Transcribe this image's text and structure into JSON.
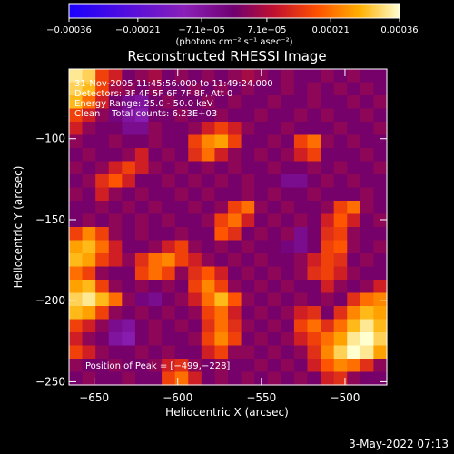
{
  "chart_data": {
    "type": "heatmap",
    "title": "Reconstructed RHESSI Image",
    "xlabel": "Heliocentric X (arcsec)",
    "ylabel": "Heliocentric Y (arcsec)",
    "xlim": [
      -665,
      -475
    ],
    "ylim": [
      -252,
      -57
    ],
    "x_ticks": [
      -650,
      -600,
      -550,
      -500
    ],
    "x_tick_labels": [
      "−650",
      "−600",
      "−550",
      "−500"
    ],
    "y_ticks": [
      -100,
      -150,
      -200,
      -250
    ],
    "y_tick_labels": [
      "−100",
      "−150",
      "−200",
      "−250"
    ],
    "colorbar": {
      "vmin": -0.00036,
      "vmax": 0.00036,
      "ticks": [
        -0.00036,
        -0.00021,
        -7.1e-05,
        7.1e-05,
        0.00021,
        0.00036
      ],
      "tick_labels": [
        "−0.00036",
        "−0.00021",
        "−7.1e−05",
        "7.1e−05",
        "0.00021",
        "0.00036"
      ],
      "unit_label": "(photons cm⁻² s⁻¹ asec⁻²)"
    },
    "annotations": {
      "time_range": "31-Nov-2005 11:45:56.000 to 11:49:24.000",
      "detectors": "Detectors: 3F 4F 5F 6F 7F 8F, Att 0",
      "energy": "Energy Range: 25.0 - 50.0 keV",
      "clean": "Clean    Total counts: 6.23E+03",
      "peak": "Position of Peak = [−499,−228]"
    },
    "peak_position": [
      -499,
      -228
    ],
    "grid_rows": 24,
    "grid_cols": 24,
    "grid_values": [
      [
        0.95,
        0.9,
        0.6,
        0.5,
        0.3,
        0.35,
        0.4,
        0.3,
        0.35,
        0.3,
        0.35,
        0.3,
        0.35,
        0.4,
        0.35,
        0.3,
        0.35,
        0.3,
        0.3,
        0.35,
        0.3,
        0.35,
        0.3,
        0.3
      ],
      [
        0.9,
        0.85,
        0.6,
        0.4,
        0.35,
        0.3,
        0.35,
        0.3,
        0.3,
        0.35,
        0.3,
        0.35,
        0.3,
        0.35,
        0.3,
        0.3,
        0.35,
        0.3,
        0.35,
        0.3,
        0.35,
        0.3,
        0.35,
        0.3
      ],
      [
        0.85,
        0.7,
        0.5,
        0.3,
        0.2,
        0.15,
        0.3,
        0.35,
        0.3,
        0.3,
        0.35,
        0.3,
        0.35,
        0.3,
        0.3,
        0.35,
        0.3,
        0.3,
        0.35,
        0.3,
        0.3,
        0.35,
        0.3,
        0.35
      ],
      [
        0.6,
        0.5,
        0.35,
        0.25,
        0.15,
        0.1,
        0.3,
        0.3,
        0.35,
        0.3,
        0.3,
        0.35,
        0.3,
        0.3,
        0.35,
        0.3,
        0.3,
        0.35,
        0.3,
        0.35,
        0.3,
        0.3,
        0.35,
        0.3
      ],
      [
        0.5,
        0.35,
        0.3,
        0.3,
        0.2,
        0.2,
        0.35,
        0.3,
        0.3,
        0.35,
        0.5,
        0.6,
        0.5,
        0.35,
        0.3,
        0.3,
        0.35,
        0.3,
        0.3,
        0.3,
        0.35,
        0.3,
        0.3,
        0.35
      ],
      [
        0.35,
        0.3,
        0.3,
        0.35,
        0.3,
        0.3,
        0.35,
        0.3,
        0.3,
        0.6,
        0.75,
        0.8,
        0.6,
        0.3,
        0.3,
        0.35,
        0.3,
        0.6,
        0.7,
        0.35,
        0.3,
        0.35,
        0.3,
        0.3
      ],
      [
        0.3,
        0.35,
        0.3,
        0.3,
        0.35,
        0.5,
        0.3,
        0.35,
        0.3,
        0.55,
        0.7,
        0.5,
        0.35,
        0.3,
        0.35,
        0.3,
        0.35,
        0.5,
        0.6,
        0.3,
        0.3,
        0.3,
        0.35,
        0.3
      ],
      [
        0.35,
        0.3,
        0.35,
        0.5,
        0.6,
        0.5,
        0.35,
        0.3,
        0.35,
        0.3,
        0.35,
        0.3,
        0.35,
        0.3,
        0.3,
        0.35,
        0.3,
        0.3,
        0.35,
        0.3,
        0.35,
        0.3,
        0.3,
        0.35
      ],
      [
        0.3,
        0.35,
        0.55,
        0.65,
        0.5,
        0.3,
        0.3,
        0.35,
        0.3,
        0.35,
        0.3,
        0.35,
        0.3,
        0.35,
        0.3,
        0.3,
        0.2,
        0.2,
        0.3,
        0.35,
        0.3,
        0.35,
        0.3,
        0.3
      ],
      [
        0.35,
        0.3,
        0.5,
        0.35,
        0.3,
        0.35,
        0.3,
        0.3,
        0.35,
        0.3,
        0.35,
        0.3,
        0.3,
        0.35,
        0.3,
        0.35,
        0.3,
        0.3,
        0.35,
        0.3,
        0.3,
        0.3,
        0.35,
        0.3
      ],
      [
        0.3,
        0.3,
        0.35,
        0.3,
        0.35,
        0.3,
        0.35,
        0.3,
        0.3,
        0.35,
        0.3,
        0.35,
        0.6,
        0.7,
        0.35,
        0.3,
        0.35,
        0.3,
        0.3,
        0.35,
        0.6,
        0.7,
        0.35,
        0.3
      ],
      [
        0.3,
        0.35,
        0.3,
        0.35,
        0.3,
        0.35,
        0.3,
        0.35,
        0.3,
        0.3,
        0.35,
        0.6,
        0.7,
        0.5,
        0.3,
        0.35,
        0.3,
        0.35,
        0.3,
        0.5,
        0.65,
        0.5,
        0.3,
        0.35
      ],
      [
        0.6,
        0.75,
        0.6,
        0.35,
        0.3,
        0.35,
        0.3,
        0.3,
        0.35,
        0.3,
        0.3,
        0.65,
        0.55,
        0.3,
        0.35,
        0.3,
        0.35,
        0.2,
        0.3,
        0.55,
        0.6,
        0.35,
        0.3,
        0.3
      ],
      [
        0.8,
        0.85,
        0.7,
        0.5,
        0.3,
        0.3,
        0.35,
        0.5,
        0.6,
        0.35,
        0.3,
        0.35,
        0.3,
        0.35,
        0.3,
        0.3,
        0.25,
        0.2,
        0.3,
        0.6,
        0.65,
        0.35,
        0.3,
        0.35
      ],
      [
        0.85,
        0.8,
        0.6,
        0.5,
        0.35,
        0.55,
        0.7,
        0.75,
        0.6,
        0.5,
        0.35,
        0.3,
        0.35,
        0.3,
        0.35,
        0.3,
        0.3,
        0.35,
        0.5,
        0.6,
        0.55,
        0.3,
        0.35,
        0.3
      ],
      [
        0.7,
        0.6,
        0.35,
        0.3,
        0.3,
        0.6,
        0.7,
        0.6,
        0.35,
        0.55,
        0.65,
        0.5,
        0.3,
        0.35,
        0.3,
        0.35,
        0.3,
        0.35,
        0.55,
        0.6,
        0.5,
        0.35,
        0.3,
        0.3
      ],
      [
        0.8,
        0.85,
        0.6,
        0.35,
        0.3,
        0.35,
        0.3,
        0.35,
        0.3,
        0.6,
        0.75,
        0.6,
        0.35,
        0.3,
        0.35,
        0.3,
        0.35,
        0.3,
        0.3,
        0.5,
        0.35,
        0.3,
        0.35,
        0.5
      ],
      [
        0.9,
        0.95,
        0.85,
        0.7,
        0.35,
        0.25,
        0.2,
        0.3,
        0.35,
        0.5,
        0.7,
        0.85,
        0.65,
        0.35,
        0.3,
        0.35,
        0.3,
        0.35,
        0.3,
        0.35,
        0.3,
        0.55,
        0.7,
        0.75
      ],
      [
        0.85,
        0.8,
        0.6,
        0.35,
        0.3,
        0.35,
        0.3,
        0.35,
        0.3,
        0.35,
        0.6,
        0.7,
        0.5,
        0.3,
        0.35,
        0.3,
        0.35,
        0.5,
        0.55,
        0.3,
        0.55,
        0.75,
        0.85,
        0.8
      ],
      [
        0.6,
        0.5,
        0.35,
        0.2,
        0.15,
        0.3,
        0.35,
        0.3,
        0.35,
        0.3,
        0.55,
        0.7,
        0.55,
        0.35,
        0.3,
        0.35,
        0.3,
        0.6,
        0.7,
        0.55,
        0.7,
        0.85,
        0.95,
        0.85
      ],
      [
        0.5,
        0.35,
        0.3,
        0.15,
        0.1,
        0.3,
        0.35,
        0.3,
        0.3,
        0.35,
        0.6,
        0.75,
        0.6,
        0.3,
        0.35,
        0.3,
        0.35,
        0.5,
        0.6,
        0.7,
        0.8,
        0.95,
        1.0,
        0.9
      ],
      [
        0.6,
        0.5,
        0.35,
        0.3,
        0.3,
        0.35,
        0.3,
        0.35,
        0.3,
        0.3,
        0.5,
        0.6,
        0.35,
        0.35,
        0.3,
        0.35,
        0.3,
        0.35,
        0.55,
        0.75,
        0.9,
        1.0,
        0.95,
        0.8
      ],
      [
        0.35,
        0.3,
        0.3,
        0.35,
        0.3,
        0.3,
        0.35,
        0.5,
        0.55,
        0.35,
        0.3,
        0.35,
        0.3,
        0.3,
        0.35,
        0.3,
        0.35,
        0.3,
        0.5,
        0.65,
        0.75,
        0.7,
        0.55,
        0.35
      ],
      [
        0.3,
        0.35,
        0.3,
        0.3,
        0.35,
        0.3,
        0.3,
        0.6,
        0.7,
        0.5,
        0.3,
        0.35,
        0.3,
        0.35,
        0.3,
        0.35,
        0.3,
        0.35,
        0.3,
        0.5,
        0.55,
        0.35,
        0.3,
        0.3
      ]
    ]
  },
  "footer": {
    "date": "3-May-2022 07:13"
  }
}
